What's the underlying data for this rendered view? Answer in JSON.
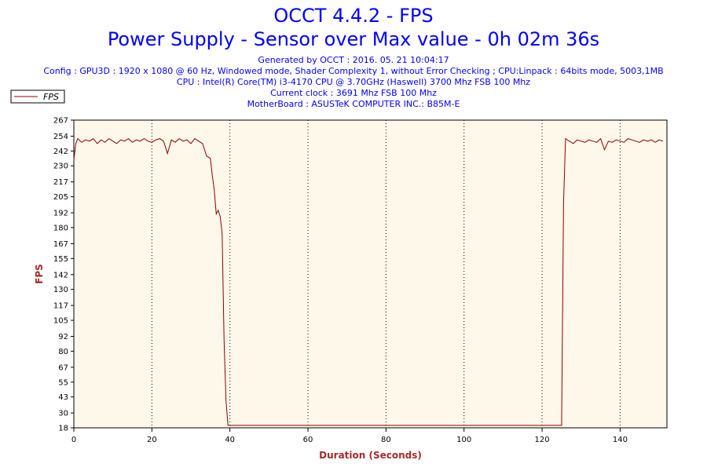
{
  "header": {
    "title": "OCCT 4.4.2 - FPS",
    "subtitle": "Power Supply - Sensor over Max value - 0h 02m 36s",
    "generated": "Generated by OCCT : 2016. 05. 21 10:04:17",
    "config": "Config : GPU3D : 1920 x 1080 @ 60 Hz, Windowed mode, Shader Complexity 1, without Error Checking ; CPU:Linpack : 64bits mode, 5003,1MB",
    "cpu": "CPU : Intel(R) Core(TM) i3-4170 CPU @ 3.70GHz (Haswell) 3700 Mhz FSB 100 Mhz",
    "clock": "Current clock : 3691 Mhz FSB 100 Mhz",
    "motherboard": "MotherBoard : ASUSTeK COMPUTER INC.: B85M-E"
  },
  "colors": {
    "title": "#0000ff",
    "axis_label": "#a52a2a",
    "line": "#8b0000",
    "plot_bg": "#fdf8ea"
  },
  "chart_data": {
    "type": "line",
    "xlabel": "Duration (Seconds)",
    "ylabel": "FPS",
    "xlim": [
      0,
      152
    ],
    "ylim": [
      18,
      267
    ],
    "xticks": [
      0,
      20,
      40,
      60,
      80,
      100,
      120,
      140
    ],
    "yticks": [
      18,
      30,
      43,
      55,
      67,
      80,
      92,
      105,
      117,
      130,
      142,
      155,
      167,
      180,
      192,
      205,
      217,
      230,
      242,
      254,
      267
    ],
    "grid": "vertical dotted",
    "legend": "top-left",
    "series": [
      {
        "name": "FPS",
        "x": [
          0,
          0.5,
          1,
          2,
          3,
          4,
          5,
          6,
          7,
          8,
          9,
          10,
          11,
          12,
          13,
          14,
          15,
          16,
          17,
          18,
          19,
          20,
          21,
          22,
          23,
          24,
          25,
          26,
          27,
          28,
          29,
          30,
          31,
          32,
          33,
          34,
          35,
          35.5,
          36,
          36.5,
          37,
          37.5,
          38,
          38.5,
          39,
          39.5,
          40,
          60,
          80,
          100,
          120,
          124,
          125,
          125.5,
          126,
          127,
          128,
          129,
          130,
          131,
          132,
          133,
          134,
          135,
          136,
          137,
          138,
          139,
          140,
          141,
          142,
          143,
          144,
          145,
          146,
          147,
          148,
          149,
          150,
          151
        ],
        "y": [
          235,
          248,
          252,
          249,
          251,
          250,
          252,
          248,
          251,
          249,
          252,
          250,
          248,
          251,
          250,
          252,
          249,
          251,
          250,
          252,
          250,
          249,
          251,
          252,
          250,
          240,
          251,
          249,
          252,
          250,
          251,
          248,
          252,
          250,
          248,
          238,
          236,
          222,
          210,
          191,
          194,
          189,
          175,
          90,
          40,
          20,
          20,
          20,
          20,
          20,
          20,
          20,
          20,
          200,
          252,
          250,
          248,
          251,
          250,
          249,
          251,
          250,
          249,
          252,
          243,
          250,
          249,
          251,
          250,
          249,
          252,
          251,
          250,
          249,
          251,
          250,
          251,
          249,
          251,
          250
        ]
      }
    ]
  }
}
